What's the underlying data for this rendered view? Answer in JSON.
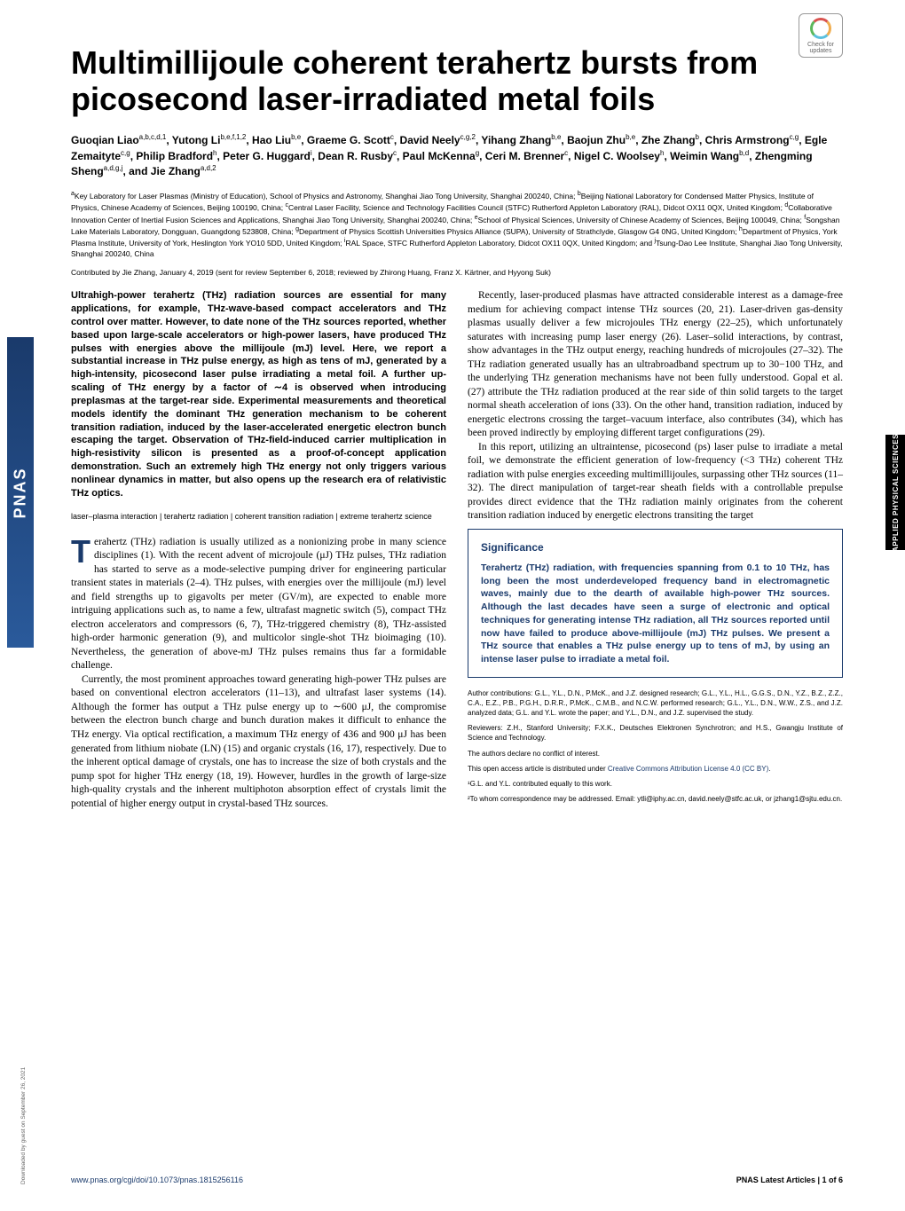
{
  "journal_sidebar": "PNAS",
  "crossmark": {
    "top": "Check for",
    "bottom": "updates"
  },
  "side_tab": "APPLIED PHYSICAL SCIENCES",
  "download_note": "Downloaded by guest on September 26, 2021",
  "title": "Multimillijoule coherent terahertz bursts from picosecond laser-irradiated metal foils",
  "authors_html": "Guoqian Liao<sup>a,b,c,d,1</sup>, Yutong Li<sup>b,e,f,1,2</sup>, Hao Liu<sup>b,e</sup>, Graeme G. Scott<sup>c</sup>, David Neely<sup>c,g,2</sup>, Yihang Zhang<sup>b,e</sup>, Baojun Zhu<sup>b,e</sup>, Zhe Zhang<sup>b</sup>, Chris Armstrong<sup>c,g</sup>, Egle Zemaityte<sup>c,g</sup>, Philip Bradford<sup>h</sup>, Peter G. Huggard<sup>i</sup>, Dean R. Rusby<sup>c</sup>, Paul McKenna<sup>g</sup>, Ceri M. Brenner<sup>c</sup>, Nigel C. Woolsey<sup>h</sup>, Weimin Wang<sup>b,d</sup>, Zhengming Sheng<sup>a,d,g,j</sup>, and Jie Zhang<sup>a,d,2</sup>",
  "affiliations_html": "<sup>a</sup>Key Laboratory for Laser Plasmas (Ministry of Education), School of Physics and Astronomy, Shanghai Jiao Tong University, Shanghai 200240, China; <sup>b</sup>Beijing National Laboratory for Condensed Matter Physics, Institute of Physics, Chinese Academy of Sciences, Beijing 100190, China; <sup>c</sup>Central Laser Facility, Science and Technology Facilities Council (STFC) Rutherford Appleton Laboratory (RAL), Didcot OX11 0QX, United Kingdom; <sup>d</sup>Collaborative Innovation Center of Inertial Fusion Sciences and Applications, Shanghai Jiao Tong University, Shanghai 200240, China; <sup>e</sup>School of Physical Sciences, University of Chinese Academy of Sciences, Beijing 100049, China; <sup>f</sup>Songshan Lake Materials Laboratory, Dongguan, Guangdong 523808, China; <sup>g</sup>Department of Physics Scottish Universities Physics Alliance (SUPA), University of Strathclyde, Glasgow G4 0NG, United Kingdom; <sup>h</sup>Department of Physics, York Plasma Institute, University of York, Heslington York YO10 5DD, United Kingdom; <sup>i</sup>RAL Space, STFC Rutherford Appleton Laboratory, Didcot OX11 0QX, United Kingdom; and <sup>j</sup>Tsung-Dao Lee Institute, Shanghai Jiao Tong University, Shanghai 200240, China",
  "contributed": "Contributed by Jie Zhang, January 4, 2019 (sent for review September 6, 2018; reviewed by Zhirong Huang, Franz X. Kärtner, and Hyyong Suk)",
  "abstract": "Ultrahigh-power terahertz (THz) radiation sources are essential for many applications, for example, THz-wave-based compact accelerators and THz control over matter. However, to date none of the THz sources reported, whether based upon large-scale accelerators or high-power lasers, have produced THz pulses with energies above the millijoule (mJ) level. Here, we report a substantial increase in THz pulse energy, as high as tens of mJ, generated by a high-intensity, picosecond laser pulse irradiating a metal foil. A further up-scaling of THz energy by a factor of ∼4 is observed when introducing preplasmas at the target-rear side. Experimental measurements and theoretical models identify the dominant THz generation mechanism to be coherent transition radiation, induced by the laser-accelerated energetic electron bunch escaping the target. Observation of THz-field-induced carrier multiplication in high-resistivity silicon is presented as a proof-of-concept application demonstration. Such an extremely high THz energy not only triggers various nonlinear dynamics in matter, but also opens up the research era of relativistic THz optics.",
  "keywords": "laser–plasma interaction | terahertz radiation | coherent transition radiation | extreme terahertz science",
  "left_body_p1": "erahertz (THz) radiation is usually utilized as a nonionizing probe in many science disciplines (1). With the recent advent of microjoule (μJ) THz pulses, THz radiation has started to serve as a mode-selective pumping driver for engineering particular transient states in materials (2–4). THz pulses, with energies over the millijoule (mJ) level and field strengths up to gigavolts per meter (GV/m), are expected to enable more intriguing applications such as, to name a few, ultrafast magnetic switch (5), compact THz electron accelerators and compressors (6, 7), THz-triggered chemistry (8), THz-assisted high-order harmonic generation (9), and multicolor single-shot THz bioimaging (10). Nevertheless, the generation of above-mJ THz pulses remains thus far a formidable challenge.",
  "left_body_p2": "Currently, the most prominent approaches toward generating high-power THz pulses are based on conventional electron accelerators (11–13), and ultrafast laser systems (14). Although the former has output a THz pulse energy up to ∼600 μJ, the compromise between the electron bunch charge and bunch duration makes it difficult to enhance the THz energy. Via optical rectification, a maximum THz energy of 436 and 900 μJ has been generated from lithium niobate (LN) (15) and organic crystals (16, 17), respectively. Due to the inherent optical damage of crystals, one has to increase the size of both crystals and the pump spot for higher THz energy (18, 19). However, hurdles in the growth of large-size high-quality crystals and the inherent multiphoton absorption effect of crystals limit the potential of higher energy output in crystal-based THz sources.",
  "right_body_p1": "Recently, laser-produced plasmas have attracted considerable interest as a damage-free medium for achieving compact intense THz sources (20, 21). Laser-driven gas-density plasmas usually deliver a few microjoules THz energy (22–25), which unfortunately saturates with increasing pump laser energy (26). Laser–solid interactions, by contrast, show advantages in the THz output energy, reaching hundreds of microjoules (27–32). The THz radiation generated usually has an ultrabroadband spectrum up to 30−100 THz, and the underlying THz generation mechanisms have not been fully understood. Gopal et al. (27) attribute the THz radiation produced at the rear side of thin solid targets to the target normal sheath acceleration of ions (33). On the other hand, transition radiation, induced by energetic electrons crossing the target–vacuum interface, also contributes (34), which has been proved indirectly by employing different target configurations (29).",
  "right_body_p2": "In this report, utilizing an ultraintense, picosecond (ps) laser pulse to irradiate a metal foil, we demonstrate the efficient generation of low-frequency (<3 THz) coherent THz radiation with pulse energies exceeding multimillijoules, surpassing other THz sources (11–32). The direct manipulation of target-rear sheath fields with a controllable prepulse provides direct evidence that the THz radiation mainly originates from the coherent transition radiation induced by energetic electrons transiting the target",
  "significance": {
    "title": "Significance",
    "body": "Terahertz (THz) radiation, with frequencies spanning from 0.1 to 10 THz, has long been the most underdeveloped frequency band in electromagnetic waves, mainly due to the dearth of available high-power THz sources. Although the last decades have seen a surge of electronic and optical techniques for generating intense THz radiation, all THz sources reported until now have failed to produce above-millijoule (mJ) THz pulses. We present a THz source that enables a THz pulse energy up to tens of mJ, by using an intense laser pulse to irradiate a metal foil."
  },
  "footnotes": {
    "contributions": "Author contributions: G.L., Y.L., D.N., P.McK., and J.Z. designed research; G.L., Y.L., H.L., G.G.S., D.N., Y.Z., B.Z., Z.Z., C.A., E.Z., P.B., P.G.H., D.R.R., P.McK., C.M.B., and N.C.W. performed research; G.L., Y.L., D.N., W.W., Z.S., and J.Z. analyzed data; G.L. and Y.L. wrote the paper; and Y.L., D.N., and J.Z. supervised the study.",
    "reviewers": "Reviewers: Z.H., Stanford University; F.X.K., Deutsches Elektronen Synchrotron; and H.S., Gwangju Institute of Science and Technology.",
    "conflict": "The authors declare no conflict of interest.",
    "license": "This open access article is distributed under ",
    "license_link": "Creative Commons Attribution License 4.0 (CC BY)",
    "note1": "¹G.L. and Y.L. contributed equally to this work.",
    "note2": "²To whom correspondence may be addressed. Email: ytli@iphy.ac.cn, david.neely@stfc.ac.uk, or jzhang1@sjtu.edu.cn."
  },
  "footer": {
    "doi": "www.pnas.org/cgi/doi/10.1073/pnas.1815256116",
    "page": "PNAS Latest Articles | 1 of 6"
  }
}
